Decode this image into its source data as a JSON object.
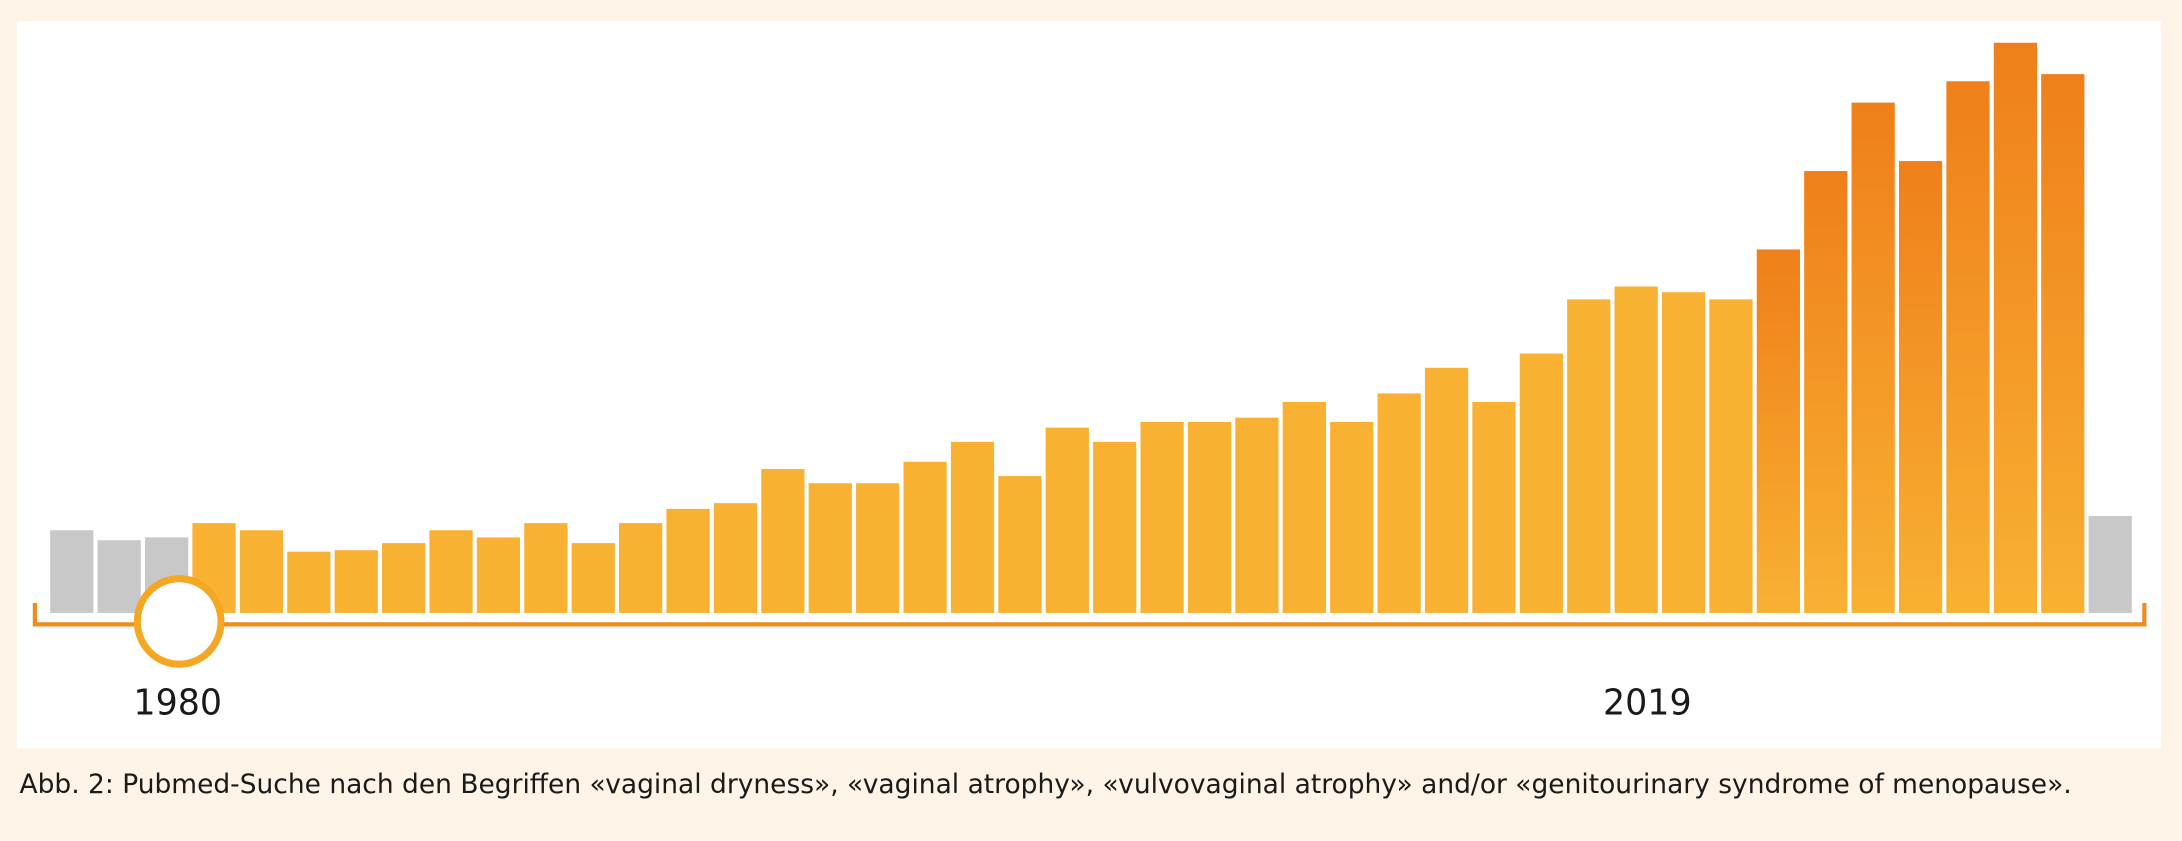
{
  "chart_data": {
    "type": "bar",
    "categories": [
      null,
      null,
      "1980",
      null,
      null,
      null,
      null,
      null,
      null,
      null,
      null,
      null,
      null,
      null,
      null,
      null,
      null,
      null,
      null,
      null,
      null,
      null,
      null,
      null,
      null,
      null,
      null,
      null,
      null,
      null,
      null,
      null,
      null,
      "2019",
      null,
      null,
      null,
      null,
      null,
      null,
      null,
      null,
      null,
      null
    ],
    "values": [
      58,
      51,
      53,
      63,
      58,
      43,
      44,
      49,
      58,
      53,
      63,
      49,
      63,
      73,
      77,
      101,
      91,
      91,
      106,
      120,
      96,
      130,
      120,
      134,
      134,
      137,
      148,
      134,
      154,
      172,
      148,
      182,
      220,
      229,
      225,
      220,
      255,
      310,
      358,
      317,
      373,
      400,
      378,
      68
    ],
    "colors": [
      "#c8c8c8",
      "#c8c8c8",
      "#c8c8c8",
      "#f8b133",
      "#f8b133",
      "#f8b133",
      "#f8b133",
      "#f8b133",
      "#f8b133",
      "#f8b133",
      "#f8b133",
      "#f8b133",
      "#f8b133",
      "#f8b133",
      "#f8b133",
      "#f8b133",
      "#f8b133",
      "#f8b133",
      "#f8b133",
      "#f8b133",
      "#f8b133",
      "#f8b133",
      "#f8b133",
      "#f8b133",
      "#f8b133",
      "#f8b133",
      "#f8b133",
      "#f8b133",
      "#f8b133",
      "#f8b133",
      "#f8b133",
      "#f8b133",
      "#f8b133",
      "#f8b133",
      "#f8b133",
      "#f8b133",
      "#ef7f1a",
      "#ef7f1a",
      "#ef7f1a",
      "#ef7f1a",
      "#ef7f1a",
      "#ef7f1a",
      "#ef7f1a",
      "#c8c8c8"
    ],
    "gradient_end": "#f8b133",
    "axis_color": "#ef8c1e",
    "ylim": [
      0,
      400
    ],
    "caption": "Abb. 2: Pubmed-Suche nach den Begriffen «vaginal dryness», «vaginal atrophy», «vulvovaginal atrophy» and/or «genitourinary syndrome of menopause»."
  }
}
